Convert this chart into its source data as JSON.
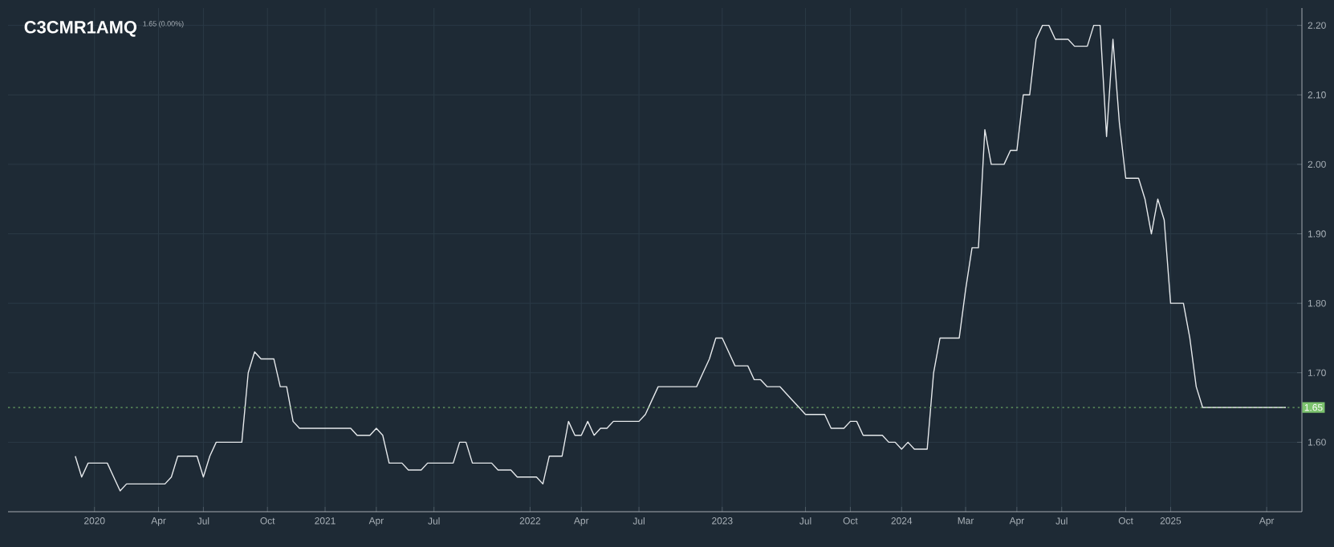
{
  "chart_data": {
    "type": "line",
    "title": "C3CMR1AMQ",
    "subtitle": "1.65 (0.00%)",
    "categories": [
      null,
      null,
      null,
      null,
      null,
      null,
      null,
      null,
      null,
      null,
      null,
      null,
      null,
      "2020",
      null,
      null,
      null,
      null,
      null,
      null,
      null,
      null,
      null,
      "Apr",
      null,
      null,
      null,
      null,
      null,
      null,
      "Jul",
      null,
      null,
      null,
      null,
      null,
      null,
      null,
      null,
      null,
      "Oct",
      null,
      null,
      null,
      null,
      null,
      null,
      null,
      null,
      "2021",
      null,
      null,
      null,
      null,
      null,
      null,
      null,
      "Apr",
      null,
      null,
      null,
      null,
      null,
      null,
      null,
      null,
      "Jul",
      null,
      null,
      null,
      null,
      null,
      null,
      null,
      null,
      null,
      null,
      null,
      null,
      null,
      null,
      "2022",
      null,
      null,
      null,
      null,
      null,
      null,
      null,
      "Apr",
      null,
      null,
      null,
      null,
      null,
      null,
      null,
      null,
      "Jul",
      null,
      null,
      null,
      null,
      null,
      null,
      null,
      null,
      null,
      null,
      null,
      null,
      "2023",
      null,
      null,
      null,
      null,
      null,
      null,
      null,
      null,
      null,
      null,
      null,
      null,
      "Jul",
      null,
      null,
      null,
      null,
      null,
      null,
      "Oct",
      null,
      null,
      null,
      null,
      null,
      null,
      null,
      "2024",
      null,
      null,
      null,
      null,
      null,
      null,
      null,
      null,
      null,
      "Mar",
      null,
      null,
      null,
      null,
      null,
      null,
      null,
      "Apr",
      null,
      null,
      null,
      null,
      null,
      null,
      "Jul",
      null,
      null,
      null,
      null,
      null,
      null,
      null,
      null,
      null,
      "Oct",
      null,
      null,
      null,
      null,
      null,
      null,
      "2025",
      null,
      null,
      null,
      null,
      null,
      null,
      null,
      null,
      null,
      null,
      null,
      null,
      null,
      null,
      "Apr",
      null,
      null,
      null,
      null,
      null
    ],
    "series": [
      {
        "color": "#e6e9ec",
        "values": [
          null,
          null,
          null,
          null,
          null,
          null,
          null,
          null,
          null,
          null,
          1.58,
          1.55,
          1.57,
          1.57,
          1.57,
          1.57,
          1.55,
          1.53,
          1.54,
          1.54,
          1.54,
          1.54,
          1.54,
          1.54,
          1.54,
          1.55,
          1.58,
          1.58,
          1.58,
          1.58,
          1.55,
          1.58,
          1.6,
          1.6,
          1.6,
          1.6,
          1.6,
          1.7,
          1.73,
          1.72,
          1.72,
          1.72,
          1.68,
          1.68,
          1.63,
          1.62,
          1.62,
          1.62,
          1.62,
          1.62,
          1.62,
          1.62,
          1.62,
          1.62,
          1.61,
          1.61,
          1.61,
          1.62,
          1.61,
          1.57,
          1.57,
          1.57,
          1.56,
          1.56,
          1.56,
          1.57,
          1.57,
          1.57,
          1.57,
          1.57,
          1.6,
          1.6,
          1.57,
          1.57,
          1.57,
          1.57,
          1.56,
          1.56,
          1.56,
          1.55,
          1.55,
          1.55,
          1.55,
          1.54,
          1.58,
          1.58,
          1.58,
          1.63,
          1.61,
          1.61,
          1.63,
          1.61,
          1.62,
          1.62,
          1.63,
          1.63,
          1.63,
          1.63,
          1.63,
          1.64,
          1.66,
          1.68,
          1.68,
          1.68,
          1.68,
          1.68,
          1.68,
          1.68,
          1.7,
          1.72,
          1.75,
          1.75,
          1.73,
          1.71,
          1.71,
          1.71,
          1.69,
          1.69,
          1.68,
          1.68,
          1.68,
          1.67,
          1.66,
          1.65,
          1.64,
          1.64,
          1.64,
          1.64,
          1.62,
          1.62,
          1.62,
          1.63,
          1.63,
          1.61,
          1.61,
          1.61,
          1.61,
          1.6,
          1.6,
          1.59,
          1.6,
          1.59,
          1.59,
          1.59,
          1.7,
          1.75,
          1.75,
          1.75,
          1.75,
          1.82,
          1.88,
          1.88,
          2.05,
          2.0,
          2.0,
          2.0,
          2.02,
          2.02,
          2.1,
          2.1,
          2.18,
          2.2,
          2.2,
          2.18,
          2.18,
          2.18,
          2.17,
          2.17,
          2.17,
          2.2,
          2.2,
          2.04,
          2.18,
          2.06,
          1.98,
          1.98,
          1.98,
          1.95,
          1.9,
          1.95,
          1.92,
          1.8,
          1.8,
          1.8,
          1.75,
          1.68,
          1.65,
          1.65,
          1.65,
          1.65,
          1.65,
          1.65,
          1.65,
          1.65,
          1.65,
          1.65,
          1.65,
          1.65,
          1.65,
          1.65,
          null,
          null
        ]
      }
    ],
    "ylim": [
      1.5,
      2.225
    ],
    "yticks": [
      {
        "value": 1.6,
        "label": "1.60"
      },
      {
        "value": 1.7,
        "label": "1.70"
      },
      {
        "value": 1.8,
        "label": "1.80"
      },
      {
        "value": 1.9,
        "label": "1.90"
      },
      {
        "value": 2.0,
        "label": "2.00"
      },
      {
        "value": 2.1,
        "label": "2.10"
      },
      {
        "value": 2.2,
        "label": "2.20"
      }
    ],
    "grid": true,
    "ref_lines": [
      {
        "axis": "y",
        "value": 1.65,
        "label": "1.65",
        "color": "#7cc36e",
        "line_style": "dotted"
      }
    ]
  }
}
